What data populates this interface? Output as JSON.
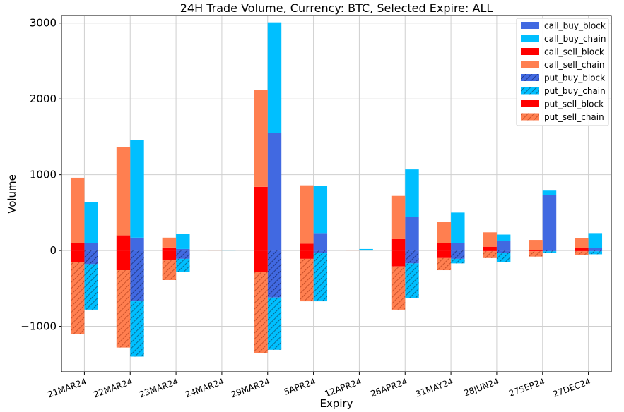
{
  "chart_data": {
    "type": "bar",
    "title": "24H Trade Volume, Currency: BTC, Selected Expire: ALL",
    "xlabel": "Expiry",
    "ylabel": "Volume",
    "ylim": [
      -1600,
      3100
    ],
    "yticks": [
      -1000,
      0,
      1000,
      2000,
      3000
    ],
    "ytick_labels": [
      "−1000",
      "0",
      "1000",
      "2000",
      "3000"
    ],
    "grid": true,
    "legend_position": "top-right",
    "categories": [
      "21MAR24",
      "22MAR24",
      "23MAR24",
      "24MAR24",
      "29MAR24",
      "5APR24",
      "12APR24",
      "26APR24",
      "31MAY24",
      "28JUN24",
      "27SEP24",
      "27DEC24"
    ],
    "series": [
      {
        "name": "call_buy_block",
        "color": "#4169e1",
        "hatch": false,
        "side": "right",
        "direction": "up",
        "values": [
          100,
          170,
          20,
          0,
          1550,
          230,
          0,
          440,
          100,
          130,
          730,
          30
        ]
      },
      {
        "name": "call_buy_chain",
        "color": "#00bfff",
        "hatch": false,
        "side": "right",
        "direction": "up",
        "values": [
          540,
          1290,
          200,
          10,
          1460,
          620,
          20,
          630,
          400,
          80,
          60,
          200
        ]
      },
      {
        "name": "call_sell_block",
        "color": "#ff0000",
        "hatch": false,
        "side": "left",
        "direction": "up",
        "values": [
          100,
          200,
          40,
          0,
          840,
          90,
          0,
          150,
          100,
          50,
          10,
          30
        ]
      },
      {
        "name": "call_sell_chain",
        "color": "#ff7f50",
        "hatch": false,
        "side": "left",
        "direction": "up",
        "values": [
          860,
          1160,
          130,
          10,
          1280,
          770,
          10,
          570,
          280,
          190,
          130,
          130
        ]
      },
      {
        "name": "put_buy_block",
        "color": "#4169e1",
        "hatch": true,
        "side": "right",
        "direction": "down",
        "values": [
          180,
          670,
          110,
          0,
          620,
          30,
          0,
          170,
          110,
          30,
          10,
          10
        ]
      },
      {
        "name": "put_buy_chain",
        "color": "#00bfff",
        "hatch": true,
        "side": "right",
        "direction": "down",
        "values": [
          600,
          730,
          170,
          0,
          690,
          640,
          0,
          460,
          60,
          120,
          20,
          40
        ]
      },
      {
        "name": "put_sell_block",
        "color": "#ff0000",
        "hatch": false,
        "side": "left",
        "direction": "down",
        "values": [
          150,
          260,
          130,
          0,
          280,
          110,
          0,
          210,
          100,
          10,
          10,
          10
        ]
      },
      {
        "name": "put_sell_chain",
        "color": "#ff7f50",
        "hatch": true,
        "side": "left",
        "direction": "down",
        "values": [
          950,
          1020,
          260,
          0,
          1070,
          560,
          0,
          570,
          160,
          90,
          70,
          50
        ]
      }
    ]
  }
}
